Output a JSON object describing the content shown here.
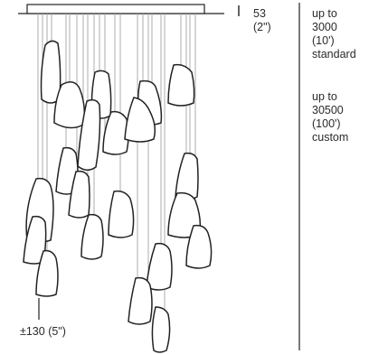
{
  "canopy_height": {
    "value": "53",
    "unit": "(2\")"
  },
  "standard_drop": {
    "lines": [
      "up to",
      "3000",
      "(10')",
      "standard"
    ]
  },
  "custom_drop": {
    "lines": [
      "up to",
      "30500",
      "(100')",
      "custom"
    ]
  },
  "cluster_tolerance": "±130 (5\")",
  "colors": {
    "line": "#222222",
    "cable": "#9a9a9a"
  }
}
